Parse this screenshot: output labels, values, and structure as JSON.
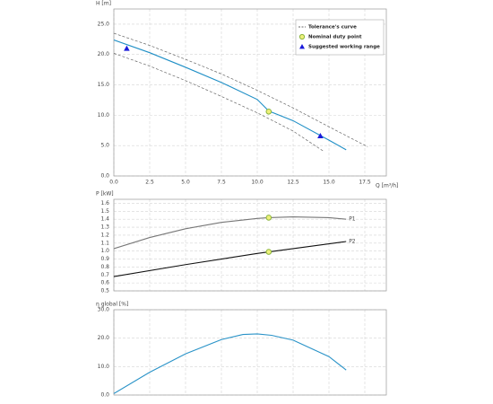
{
  "chart_data": [
    {
      "type": "line",
      "xlabel": "Q [m³/h]",
      "ylabel": "H [m]",
      "xlim": [
        0,
        19
      ],
      "ylim": [
        0,
        27.5
      ],
      "xticks": [
        {
          "value": 0,
          "label": "0.0"
        },
        2.5,
        {
          "value": 5,
          "label": "5.0"
        },
        7.5,
        {
          "value": 10,
          "label": "10.0"
        },
        12.5,
        {
          "value": 15,
          "label": "15.0"
        },
        17.5
      ],
      "yticks": [
        {
          "value": 0,
          "label": "0.0"
        },
        {
          "value": 5,
          "label": "5.0"
        },
        {
          "value": 10,
          "label": "10.0"
        },
        {
          "value": 15,
          "label": "15.0"
        },
        {
          "value": 20,
          "label": "20.0"
        },
        {
          "value": 25,
          "label": "25.0"
        }
      ],
      "grid": true,
      "legend": "upper right",
      "series": [
        {
          "color": "#1f8fc6",
          "x": [
            0,
            2.5,
            5,
            7.5,
            10,
            10.8,
            12.5,
            15,
            16.2
          ],
          "values": [
            22.4,
            20.3,
            17.9,
            15.4,
            12.6,
            10.7,
            9.1,
            5.9,
            4.3
          ]
        },
        {
          "name": "Tolerance's curve",
          "color": "#666666",
          "dash": true,
          "x": [
            0,
            2.5,
            5,
            7.5,
            10,
            12.5,
            15,
            17.7
          ],
          "values": [
            23.5,
            21.5,
            19.2,
            16.8,
            14.1,
            11.2,
            8.1,
            4.8
          ]
        },
        {
          "color": "#666666",
          "dash": true,
          "x": [
            0,
            2.5,
            5,
            7.5,
            10,
            12.5,
            14.6
          ],
          "values": [
            20.2,
            18.1,
            15.7,
            13.1,
            10.4,
            7.4,
            4.1
          ]
        },
        {
          "name": "Nominal duty point",
          "color": "#8ab43c",
          "marker": "circle",
          "x": [
            10.8
          ],
          "values": [
            10.6
          ]
        },
        {
          "name": "Suggested working range",
          "color": "#1a1adb",
          "marker": "triangle",
          "x": [
            0.9,
            14.4
          ],
          "values": [
            21.0,
            6.6
          ]
        }
      ]
    },
    {
      "type": "line",
      "ylabel": "P [kW]",
      "xlim": [
        0,
        19
      ],
      "ylim": [
        0.5,
        1.65
      ],
      "yticks": [
        0.5,
        0.6,
        0.7,
        0.8,
        0.9,
        {
          "value": 1,
          "label": "1.0"
        },
        1.1,
        1.2,
        1.3,
        1.4,
        1.5,
        1.6
      ],
      "grid": true,
      "labels_at_end": true,
      "series": [
        {
          "name": "P1",
          "color": "#777777",
          "x": [
            0,
            2.5,
            5,
            7.5,
            10,
            10.8,
            12.5,
            15,
            16.2
          ],
          "values": [
            1.03,
            1.17,
            1.28,
            1.36,
            1.41,
            1.42,
            1.43,
            1.42,
            1.4
          ]
        },
        {
          "name": "P2",
          "color": "#111111",
          "x": [
            0,
            5,
            10,
            16.2
          ],
          "values": [
            0.68,
            0.83,
            0.97,
            1.12
          ]
        },
        {
          "color": "#8ab43c",
          "marker": "circle",
          "x": [
            10.8,
            10.8
          ],
          "values": [
            1.42,
            0.99
          ]
        }
      ]
    },
    {
      "type": "line",
      "ylabel": "η global [%]",
      "xlim": [
        0,
        19
      ],
      "ylim": [
        0,
        30
      ],
      "yticks": [
        {
          "value": 0,
          "label": "0.0"
        },
        {
          "value": 10,
          "label": "10.0"
        },
        {
          "value": 20,
          "label": "20.0"
        },
        {
          "value": 30,
          "label": "30.0"
        }
      ],
      "grid": true,
      "series": [
        {
          "color": "#2a93c8",
          "x": [
            0,
            2.5,
            5,
            7.5,
            9,
            10,
            11,
            12.5,
            15,
            16.2
          ],
          "values": [
            0.5,
            8,
            14.5,
            19.5,
            21.3,
            21.5,
            21,
            19.3,
            13.5,
            8.8
          ]
        }
      ]
    }
  ]
}
